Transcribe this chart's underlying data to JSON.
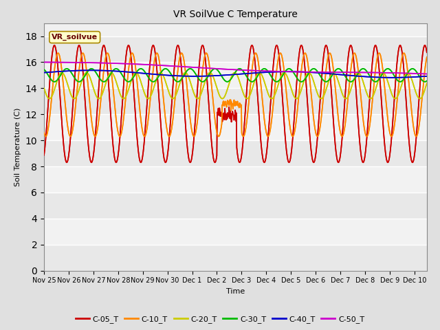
{
  "title": "VR SoilVue C Temperature",
  "xlabel": "Time",
  "ylabel": "Soil Temperature (C)",
  "ylim": [
    0,
    19
  ],
  "yticks": [
    0,
    2,
    4,
    6,
    8,
    10,
    12,
    14,
    16,
    18
  ],
  "legend_label": "VR_soilvue",
  "series_colors": [
    "#cc0000",
    "#ff8800",
    "#cccc00",
    "#00bb00",
    "#0000cc",
    "#cc00cc"
  ],
  "series_names": [
    "C-05_T",
    "C-10_T",
    "C-20_T",
    "C-30_T",
    "C-40_T",
    "C-50_T"
  ],
  "bg_color": "#e0e0e0",
  "plot_bg_light": "#f0f0f0",
  "plot_bg_dark": "#e0e0e0"
}
